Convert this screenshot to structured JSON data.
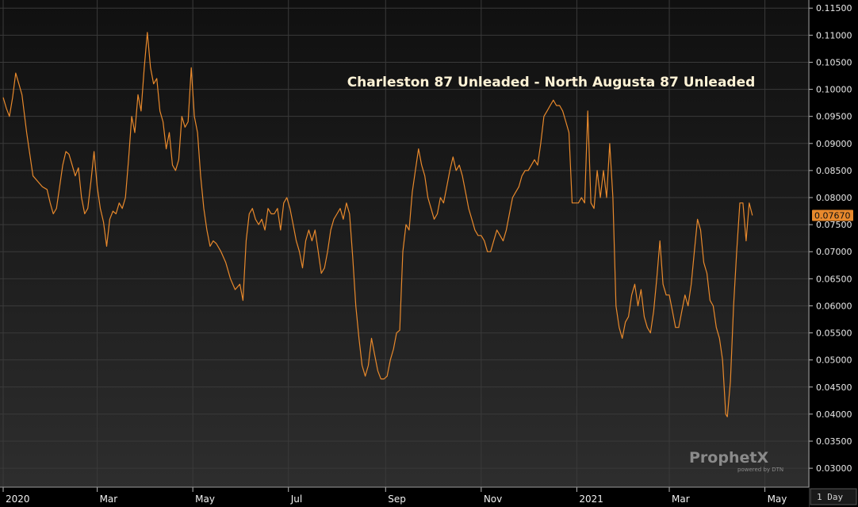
{
  "chart_data": {
    "type": "line",
    "title": "Charleston 87 Unleaded - North Augusta 87 Unleaded",
    "xlabel": "",
    "ylabel": "",
    "period": "1 Day",
    "last_value_label": "0.07670",
    "line_color": "#e8892c",
    "ylim": [
      0.0265,
      0.1165
    ],
    "y_ticks": [
      0.03,
      0.035,
      0.04,
      0.045,
      0.05,
      0.055,
      0.06,
      0.065,
      0.07,
      0.075,
      0.08,
      0.085,
      0.09,
      0.095,
      0.1,
      0.105,
      0.11,
      0.115
    ],
    "y_tick_labels": [
      "0.03000",
      "0.03500",
      "0.04000",
      "0.04500",
      "0.05000",
      "0.05500",
      "0.06000",
      "0.06500",
      "0.07000",
      "0.07500",
      "0.08000",
      "0.08500",
      "0.09000",
      "0.09500",
      "0.10000",
      "0.10500",
      "0.11000",
      "0.11500"
    ],
    "x_range": [
      "2020-01-01",
      "2021-05-26"
    ],
    "x_ticks": [
      {
        "label": "2020",
        "date": "2020-01-01"
      },
      {
        "label": "Mar",
        "date": "2020-03-01"
      },
      {
        "label": "May",
        "date": "2020-05-01"
      },
      {
        "label": "Jul",
        "date": "2020-07-01"
      },
      {
        "label": "Sep",
        "date": "2020-09-01"
      },
      {
        "label": "Nov",
        "date": "2020-11-01"
      },
      {
        "label": "2021",
        "date": "2021-01-01"
      },
      {
        "label": "Mar",
        "date": "2021-03-01"
      },
      {
        "label": "May",
        "date": "2021-05-01"
      }
    ],
    "series": [
      {
        "points": [
          [
            "2020-01-01",
            0.0985
          ],
          [
            "2020-01-03",
            0.0965
          ],
          [
            "2020-01-05",
            0.095
          ],
          [
            "2020-01-07",
            0.0985
          ],
          [
            "2020-01-09",
            0.103
          ],
          [
            "2020-01-11",
            0.101
          ],
          [
            "2020-01-13",
            0.099
          ],
          [
            "2020-01-16",
            0.092
          ],
          [
            "2020-01-18",
            0.088
          ],
          [
            "2020-01-20",
            0.084
          ],
          [
            "2020-01-23",
            0.083
          ],
          [
            "2020-01-26",
            0.082
          ],
          [
            "2020-01-29",
            0.0815
          ],
          [
            "2020-01-31",
            0.079
          ],
          [
            "2020-02-02",
            0.077
          ],
          [
            "2020-02-04",
            0.078
          ],
          [
            "2020-02-06",
            0.082
          ],
          [
            "2020-02-08",
            0.086
          ],
          [
            "2020-02-10",
            0.0885
          ],
          [
            "2020-02-12",
            0.088
          ],
          [
            "2020-02-14",
            0.086
          ],
          [
            "2020-02-16",
            0.084
          ],
          [
            "2020-02-18",
            0.0855
          ],
          [
            "2020-02-20",
            0.08
          ],
          [
            "2020-02-22",
            0.077
          ],
          [
            "2020-02-24",
            0.078
          ],
          [
            "2020-02-26",
            0.083
          ],
          [
            "2020-02-28",
            0.0885
          ],
          [
            "2020-03-01",
            0.082
          ],
          [
            "2020-03-03",
            0.078
          ],
          [
            "2020-03-05",
            0.0755
          ],
          [
            "2020-03-07",
            0.071
          ],
          [
            "2020-03-09",
            0.076
          ],
          [
            "2020-03-11",
            0.0775
          ],
          [
            "2020-03-13",
            0.077
          ],
          [
            "2020-03-15",
            0.079
          ],
          [
            "2020-03-17",
            0.078
          ],
          [
            "2020-03-19",
            0.08
          ],
          [
            "2020-03-21",
            0.087
          ],
          [
            "2020-03-23",
            0.095
          ],
          [
            "2020-03-25",
            0.092
          ],
          [
            "2020-03-27",
            0.099
          ],
          [
            "2020-03-29",
            0.096
          ],
          [
            "2020-03-31",
            0.104
          ],
          [
            "2020-04-02",
            0.1105
          ],
          [
            "2020-04-04",
            0.104
          ],
          [
            "2020-04-06",
            0.101
          ],
          [
            "2020-04-08",
            0.102
          ],
          [
            "2020-04-10",
            0.096
          ],
          [
            "2020-04-12",
            0.094
          ],
          [
            "2020-04-14",
            0.089
          ],
          [
            "2020-04-16",
            0.092
          ],
          [
            "2020-04-18",
            0.086
          ],
          [
            "2020-04-20",
            0.085
          ],
          [
            "2020-04-22",
            0.087
          ],
          [
            "2020-04-24",
            0.095
          ],
          [
            "2020-04-26",
            0.093
          ],
          [
            "2020-04-28",
            0.094
          ],
          [
            "2020-04-30",
            0.104
          ],
          [
            "2020-05-02",
            0.095
          ],
          [
            "2020-05-04",
            0.092
          ],
          [
            "2020-05-06",
            0.084
          ],
          [
            "2020-05-08",
            0.078
          ],
          [
            "2020-05-10",
            0.074
          ],
          [
            "2020-05-12",
            0.071
          ],
          [
            "2020-05-14",
            0.072
          ],
          [
            "2020-05-16",
            0.0715
          ],
          [
            "2020-05-19",
            0.07
          ],
          [
            "2020-05-22",
            0.068
          ],
          [
            "2020-05-25",
            0.065
          ],
          [
            "2020-05-28",
            0.063
          ],
          [
            "2020-05-31",
            0.064
          ],
          [
            "2020-06-02",
            0.061
          ],
          [
            "2020-06-04",
            0.072
          ],
          [
            "2020-06-06",
            0.077
          ],
          [
            "2020-06-08",
            0.078
          ],
          [
            "2020-06-10",
            0.076
          ],
          [
            "2020-06-12",
            0.075
          ],
          [
            "2020-06-14",
            0.076
          ],
          [
            "2020-06-16",
            0.074
          ],
          [
            "2020-06-18",
            0.078
          ],
          [
            "2020-06-20",
            0.077
          ],
          [
            "2020-06-22",
            0.077
          ],
          [
            "2020-06-24",
            0.078
          ],
          [
            "2020-06-26",
            0.074
          ],
          [
            "2020-06-28",
            0.079
          ],
          [
            "2020-06-30",
            0.08
          ],
          [
            "2020-07-02",
            0.078
          ],
          [
            "2020-07-04",
            0.075
          ],
          [
            "2020-07-06",
            0.072
          ],
          [
            "2020-07-08",
            0.07
          ],
          [
            "2020-07-10",
            0.067
          ],
          [
            "2020-07-12",
            0.072
          ],
          [
            "2020-07-14",
            0.074
          ],
          [
            "2020-07-16",
            0.072
          ],
          [
            "2020-07-18",
            0.074
          ],
          [
            "2020-07-20",
            0.07
          ],
          [
            "2020-07-22",
            0.066
          ],
          [
            "2020-07-24",
            0.067
          ],
          [
            "2020-07-26",
            0.07
          ],
          [
            "2020-07-28",
            0.074
          ],
          [
            "2020-07-30",
            0.076
          ],
          [
            "2020-08-01",
            0.077
          ],
          [
            "2020-08-03",
            0.078
          ],
          [
            "2020-08-05",
            0.076
          ],
          [
            "2020-08-07",
            0.079
          ],
          [
            "2020-08-09",
            0.077
          ],
          [
            "2020-08-11",
            0.069
          ],
          [
            "2020-08-13",
            0.06
          ],
          [
            "2020-08-15",
            0.054
          ],
          [
            "2020-08-17",
            0.049
          ],
          [
            "2020-08-19",
            0.047
          ],
          [
            "2020-08-21",
            0.049
          ],
          [
            "2020-08-23",
            0.054
          ],
          [
            "2020-08-25",
            0.051
          ],
          [
            "2020-08-27",
            0.048
          ],
          [
            "2020-08-29",
            0.0465
          ],
          [
            "2020-08-31",
            0.0465
          ],
          [
            "2020-09-02",
            0.047
          ],
          [
            "2020-09-04",
            0.05
          ],
          [
            "2020-09-06",
            0.052
          ],
          [
            "2020-09-08",
            0.055
          ],
          [
            "2020-09-10",
            0.0555
          ],
          [
            "2020-09-12",
            0.07
          ],
          [
            "2020-09-14",
            0.075
          ],
          [
            "2020-09-16",
            0.074
          ],
          [
            "2020-09-18",
            0.081
          ],
          [
            "2020-09-20",
            0.085
          ],
          [
            "2020-09-22",
            0.089
          ],
          [
            "2020-09-24",
            0.086
          ],
          [
            "2020-09-26",
            0.084
          ],
          [
            "2020-09-28",
            0.08
          ],
          [
            "2020-09-30",
            0.078
          ],
          [
            "2020-10-02",
            0.076
          ],
          [
            "2020-10-04",
            0.077
          ],
          [
            "2020-10-06",
            0.08
          ],
          [
            "2020-10-08",
            0.079
          ],
          [
            "2020-10-10",
            0.082
          ],
          [
            "2020-10-12",
            0.085
          ],
          [
            "2020-10-14",
            0.0875
          ],
          [
            "2020-10-16",
            0.085
          ],
          [
            "2020-10-18",
            0.086
          ],
          [
            "2020-10-20",
            0.084
          ],
          [
            "2020-10-22",
            0.081
          ],
          [
            "2020-10-24",
            0.078
          ],
          [
            "2020-10-26",
            0.076
          ],
          [
            "2020-10-28",
            0.074
          ],
          [
            "2020-10-30",
            0.073
          ],
          [
            "2020-11-01",
            0.073
          ],
          [
            "2020-11-03",
            0.072
          ],
          [
            "2020-11-05",
            0.07
          ],
          [
            "2020-11-07",
            0.07
          ],
          [
            "2020-11-09",
            0.072
          ],
          [
            "2020-11-11",
            0.074
          ],
          [
            "2020-11-13",
            0.073
          ],
          [
            "2020-11-15",
            0.072
          ],
          [
            "2020-11-17",
            0.074
          ],
          [
            "2020-11-19",
            0.077
          ],
          [
            "2020-11-21",
            0.08
          ],
          [
            "2020-11-23",
            0.081
          ],
          [
            "2020-11-25",
            0.082
          ],
          [
            "2020-11-27",
            0.084
          ],
          [
            "2020-11-29",
            0.085
          ],
          [
            "2020-12-01",
            0.085
          ],
          [
            "2020-12-03",
            0.086
          ],
          [
            "2020-12-05",
            0.087
          ],
          [
            "2020-12-07",
            0.086
          ],
          [
            "2020-12-09",
            0.09
          ],
          [
            "2020-12-11",
            0.095
          ],
          [
            "2020-12-13",
            0.096
          ],
          [
            "2020-12-15",
            0.097
          ],
          [
            "2020-12-17",
            0.098
          ],
          [
            "2020-12-19",
            0.097
          ],
          [
            "2020-12-21",
            0.097
          ],
          [
            "2020-12-23",
            0.096
          ],
          [
            "2020-12-25",
            0.094
          ],
          [
            "2020-12-27",
            0.092
          ],
          [
            "2020-12-29",
            0.079
          ],
          [
            "2020-12-31",
            0.079
          ],
          [
            "2021-01-02",
            0.079
          ],
          [
            "2021-01-04",
            0.08
          ],
          [
            "2021-01-06",
            0.079
          ],
          [
            "2021-01-08",
            0.096
          ],
          [
            "2021-01-10",
            0.079
          ],
          [
            "2021-01-12",
            0.078
          ],
          [
            "2021-01-14",
            0.085
          ],
          [
            "2021-01-16",
            0.08
          ],
          [
            "2021-01-18",
            0.085
          ],
          [
            "2021-01-20",
            0.08
          ],
          [
            "2021-01-22",
            0.09
          ],
          [
            "2021-01-24",
            0.08
          ],
          [
            "2021-01-26",
            0.06
          ],
          [
            "2021-01-28",
            0.056
          ],
          [
            "2021-01-30",
            0.054
          ],
          [
            "2021-02-01",
            0.057
          ],
          [
            "2021-02-03",
            0.058
          ],
          [
            "2021-02-05",
            0.062
          ],
          [
            "2021-02-07",
            0.064
          ],
          [
            "2021-02-09",
            0.06
          ],
          [
            "2021-02-11",
            0.063
          ],
          [
            "2021-02-13",
            0.058
          ],
          [
            "2021-02-15",
            0.056
          ],
          [
            "2021-02-17",
            0.055
          ],
          [
            "2021-02-19",
            0.059
          ],
          [
            "2021-02-21",
            0.065
          ],
          [
            "2021-02-23",
            0.072
          ],
          [
            "2021-02-25",
            0.064
          ],
          [
            "2021-02-27",
            0.062
          ],
          [
            "2021-03-01",
            0.062
          ],
          [
            "2021-03-03",
            0.059
          ],
          [
            "2021-03-05",
            0.056
          ],
          [
            "2021-03-07",
            0.056
          ],
          [
            "2021-03-09",
            0.059
          ],
          [
            "2021-03-11",
            0.062
          ],
          [
            "2021-03-13",
            0.06
          ],
          [
            "2021-03-15",
            0.064
          ],
          [
            "2021-03-17",
            0.07
          ],
          [
            "2021-03-19",
            0.076
          ],
          [
            "2021-03-21",
            0.074
          ],
          [
            "2021-03-23",
            0.068
          ],
          [
            "2021-03-25",
            0.066
          ],
          [
            "2021-03-27",
            0.061
          ],
          [
            "2021-03-29",
            0.06
          ],
          [
            "2021-03-31",
            0.056
          ],
          [
            "2021-04-02",
            0.054
          ],
          [
            "2021-04-04",
            0.05
          ],
          [
            "2021-04-06",
            0.04
          ],
          [
            "2021-04-07",
            0.0395
          ],
          [
            "2021-04-09",
            0.046
          ],
          [
            "2021-04-11",
            0.06
          ],
          [
            "2021-04-13",
            0.07
          ],
          [
            "2021-04-15",
            0.079
          ],
          [
            "2021-04-17",
            0.079
          ],
          [
            "2021-04-19",
            0.072
          ],
          [
            "2021-04-21",
            0.079
          ],
          [
            "2021-04-23",
            0.0767
          ]
        ]
      }
    ]
  },
  "brand": {
    "logo_text": "ProphetX",
    "logo_sub": "powered by DTN"
  }
}
